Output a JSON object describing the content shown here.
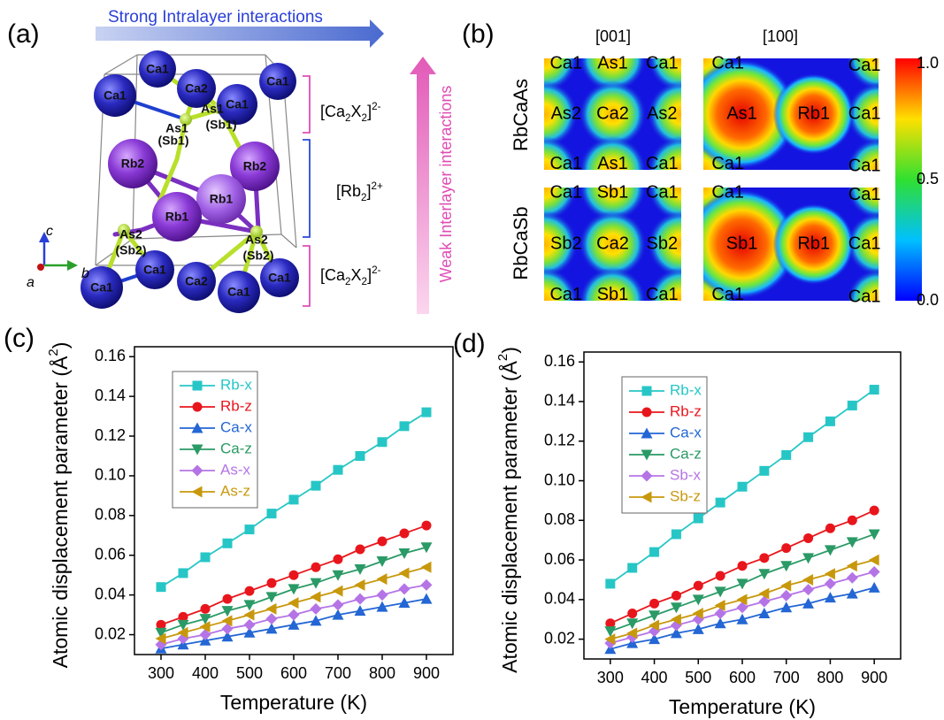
{
  "panel_a": {
    "label": "(a)",
    "intralayer": "Strong Intralayer interactions",
    "interlayer": "Weak Interlayer interactions",
    "atoms": [
      "Ca1",
      "Ca1",
      "Ca2",
      "Ca1",
      "Ca1",
      "Rb2",
      "Rb2",
      "Rb1",
      "Rb1",
      "Ca1",
      "Ca1",
      "Ca2",
      "Ca1",
      "Ca1"
    ],
    "site_labels": [
      "As1",
      "(Sb1)",
      "As1",
      "(Sb1)",
      "As2",
      "(Sb2)",
      "As2",
      "(Sb2)"
    ],
    "layers": [
      {
        "parts": [
          "[Ca",
          "2",
          "X",
          "2",
          "]",
          "2-"
        ]
      },
      {
        "parts": [
          "[Rb",
          "2",
          "]",
          "2+"
        ]
      },
      {
        "parts": [
          "[Ca",
          "2",
          "X",
          "2",
          "]",
          "2-"
        ]
      }
    ],
    "axes": [
      "c",
      "a",
      "b"
    ]
  },
  "panel_b": {
    "label": "(b)",
    "directions": [
      "[001]",
      "[100]"
    ],
    "compounds": [
      "RbCaAs",
      "RbCaSb"
    ],
    "maps": [
      {
        "labels": [
          "Ca1",
          "As1",
          "Ca1",
          "As2",
          "Ca2",
          "As2",
          "Ca1",
          "As1",
          "Ca1"
        ]
      },
      {
        "labels": [
          "Ca1",
          "Ca1",
          "As1",
          "Rb1",
          "Ca1",
          "Ca1",
          "Ca1"
        ]
      },
      {
        "labels": [
          "Ca1",
          "Sb1",
          "Ca1",
          "Sb2",
          "Ca2",
          "Sb2",
          "Ca1",
          "Sb1",
          "Ca1"
        ]
      },
      {
        "labels": [
          "Ca1",
          "Ca1",
          "Sb1",
          "Rb1",
          "Ca1",
          "Ca1",
          "Ca1"
        ]
      }
    ],
    "colorbar": {
      "lim": [
        0,
        1
      ],
      "ticks": [
        {
          "value": 1,
          "label": "1.0"
        },
        0.5,
        {
          "value": 0,
          "label": "0.0"
        }
      ]
    }
  },
  "chart_data": [
    {
      "type": "line",
      "panel_label": "(c)",
      "x_label": "Temperature (K)",
      "y_label": {
        "parts": [
          "Atomic displacement parameter (Å",
          "2",
          ")"
        ]
      },
      "x": [
        300,
        350,
        400,
        450,
        500,
        550,
        600,
        650,
        700,
        750,
        800,
        850,
        900
      ],
      "xlim": [
        240,
        960
      ],
      "xticks": [
        300,
        400,
        500,
        600,
        700,
        800,
        900
      ],
      "ylim": [
        0.01,
        0.165
      ],
      "yticks": [
        0.02,
        0.04,
        0.06,
        0.08,
        {
          "value": 0.1,
          "label": "0.10"
        },
        0.12,
        0.14,
        0.16
      ],
      "series": [
        {
          "name": "Rb-x",
          "color": "#27c6c6",
          "marker": "square",
          "values": [
            0.044,
            0.051,
            0.059,
            0.066,
            0.073,
            0.081,
            0.088,
            0.095,
            0.103,
            0.11,
            0.117,
            0.125,
            0.132
          ]
        },
        {
          "name": "Rb-z",
          "color": "#e8161c",
          "marker": "circle",
          "values": [
            0.025,
            0.029,
            0.033,
            0.038,
            0.042,
            0.046,
            0.05,
            0.054,
            0.058,
            0.063,
            0.067,
            0.071,
            0.075
          ]
        },
        {
          "name": "Ca-x",
          "color": "#2366d4",
          "marker": "triangle-up",
          "values": [
            0.013,
            0.015,
            0.017,
            0.019,
            0.021,
            0.023,
            0.025,
            0.027,
            0.03,
            0.032,
            0.034,
            0.036,
            0.038
          ]
        },
        {
          "name": "Ca-z",
          "color": "#2a9a66",
          "marker": "triangle-down",
          "values": [
            0.021,
            0.025,
            0.028,
            0.032,
            0.035,
            0.039,
            0.043,
            0.046,
            0.05,
            0.053,
            0.057,
            0.061,
            0.064
          ]
        },
        {
          "name": "As-x",
          "color": "#b574e6",
          "marker": "diamond",
          "values": [
            0.015,
            0.018,
            0.02,
            0.023,
            0.025,
            0.028,
            0.03,
            0.033,
            0.035,
            0.038,
            0.04,
            0.043,
            0.045
          ]
        },
        {
          "name": "As-z",
          "color": "#c8980c",
          "marker": "triangle-left",
          "values": [
            0.018,
            0.021,
            0.024,
            0.027,
            0.03,
            0.033,
            0.036,
            0.039,
            0.042,
            0.045,
            0.048,
            0.051,
            0.054
          ]
        }
      ]
    },
    {
      "type": "line",
      "panel_label": "(d)",
      "x_label": "Temperature (K)",
      "y_label": {
        "parts": [
          "Atomic displacement parameter (Å",
          "2",
          ")"
        ]
      },
      "x": [
        300,
        350,
        400,
        450,
        500,
        550,
        600,
        650,
        700,
        750,
        800,
        850,
        900
      ],
      "xlim": [
        240,
        960
      ],
      "xticks": [
        300,
        400,
        500,
        600,
        700,
        800,
        900
      ],
      "ylim": [
        0.01,
        0.165
      ],
      "yticks": [
        0.02,
        0.04,
        0.06,
        0.08,
        {
          "value": 0.1,
          "label": "0.10"
        },
        0.12,
        0.14,
        0.16
      ],
      "series": [
        {
          "name": "Rb-x",
          "color": "#27c6c6",
          "marker": "square",
          "values": [
            0.048,
            0.056,
            0.064,
            0.073,
            0.081,
            0.089,
            0.097,
            0.105,
            0.113,
            0.122,
            0.13,
            0.138,
            0.146
          ]
        },
        {
          "name": "Rb-z",
          "color": "#e8161c",
          "marker": "circle",
          "values": [
            0.028,
            0.033,
            0.038,
            0.042,
            0.047,
            0.052,
            0.057,
            0.061,
            0.066,
            0.071,
            0.076,
            0.08,
            0.085
          ]
        },
        {
          "name": "Ca-x",
          "color": "#2366d4",
          "marker": "triangle-up",
          "values": [
            0.015,
            0.018,
            0.02,
            0.023,
            0.025,
            0.028,
            0.03,
            0.033,
            0.036,
            0.038,
            0.041,
            0.043,
            0.046
          ]
        },
        {
          "name": "Ca-z",
          "color": "#2a9a66",
          "marker": "triangle-down",
          "values": [
            0.024,
            0.028,
            0.032,
            0.036,
            0.04,
            0.044,
            0.048,
            0.053,
            0.057,
            0.061,
            0.065,
            0.069,
            0.073
          ]
        },
        {
          "name": "Sb-x",
          "color": "#b574e6",
          "marker": "diamond",
          "values": [
            0.018,
            0.021,
            0.024,
            0.027,
            0.03,
            0.033,
            0.036,
            0.039,
            0.042,
            0.045,
            0.048,
            0.051,
            0.054
          ]
        },
        {
          "name": "Sb-z",
          "color": "#c8980c",
          "marker": "triangle-left",
          "values": [
            0.02,
            0.023,
            0.027,
            0.03,
            0.033,
            0.037,
            0.04,
            0.043,
            0.047,
            0.05,
            0.053,
            0.057,
            0.06
          ]
        }
      ]
    }
  ]
}
